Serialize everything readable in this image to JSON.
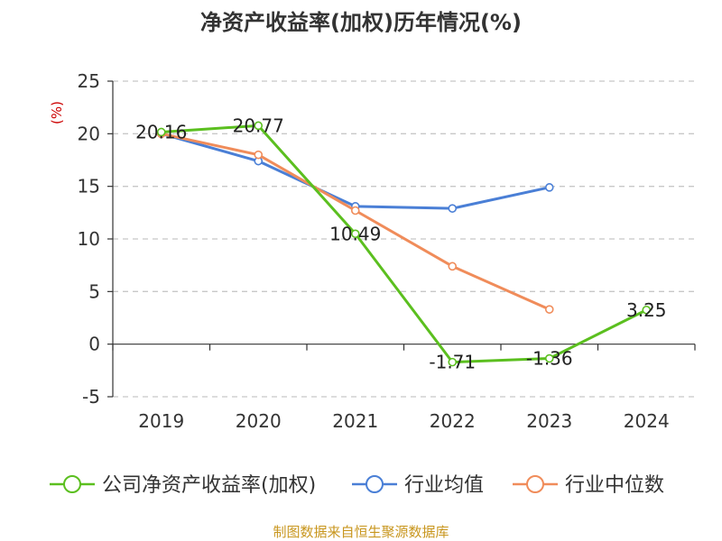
{
  "chart_data": {
    "type": "line",
    "title": "净资产收益率(加权)历年情况(%)",
    "ylabel": "(%)",
    "xlabel": "",
    "categories": [
      "2019",
      "2020",
      "2021",
      "2022",
      "2023",
      "2024"
    ],
    "ylim": [
      -5,
      25
    ],
    "yticks": [
      "25",
      "20",
      "15",
      "10",
      "5",
      "0",
      "-5"
    ],
    "grid": true,
    "legend_position": "bottom",
    "series": [
      {
        "name": "公司净资产收益率(加权)",
        "color": "#5bbf1f",
        "values": [
          20.16,
          20.77,
          10.49,
          -1.71,
          -1.36,
          3.25
        ],
        "labels": [
          "20.16",
          "20.77",
          "10.49",
          "-1.71",
          "-1.36",
          "3.25"
        ]
      },
      {
        "name": "行业均值",
        "color": "#4a7fd6",
        "values": [
          20.0,
          17.4,
          13.1,
          12.9,
          14.9,
          null
        ]
      },
      {
        "name": "行业中位数",
        "color": "#f08c5a",
        "values": [
          20.0,
          18.0,
          12.7,
          7.4,
          3.3,
          null
        ]
      }
    ]
  },
  "source": "制图数据来自恒生聚源数据库",
  "colors": {
    "title": "#333333",
    "axis": "#333333",
    "grid": "#c8c8c8",
    "ylabel": "#cc0000",
    "source": "#c8961e"
  }
}
